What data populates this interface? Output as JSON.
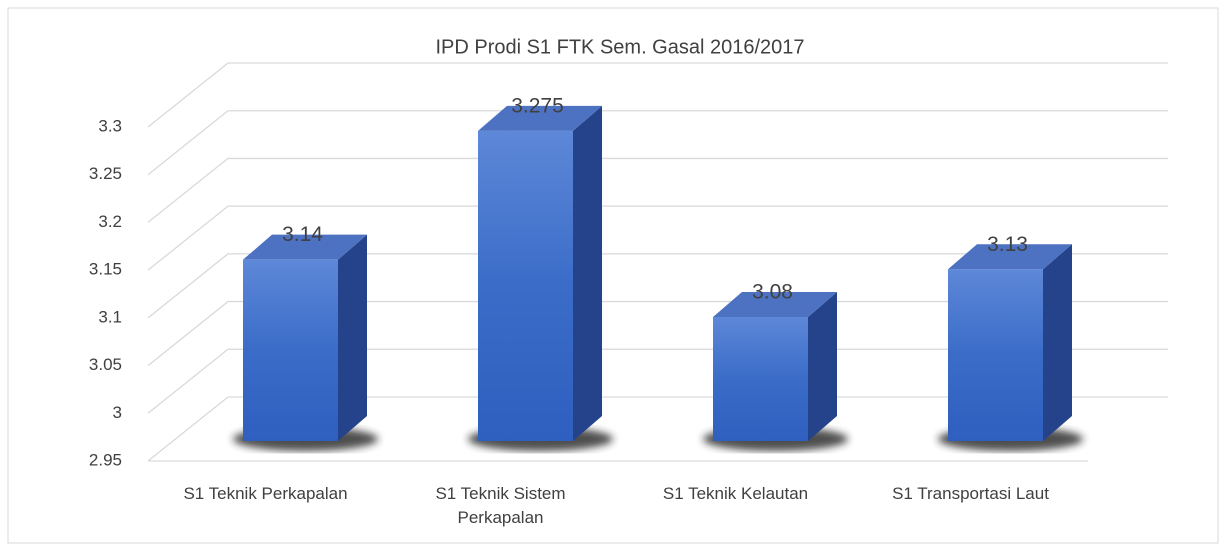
{
  "chart_data": {
    "type": "bar",
    "title": "IPD Prodi S1 FTK Sem. Gasal 2016/2017",
    "categories": [
      "S1 Teknik Perkapalan",
      "S1 Teknik Sistem Perkapalan",
      "S1 Teknik Kelautan",
      "S1 Transportasi Laut"
    ],
    "values": [
      3.14,
      3.275,
      3.08,
      3.13
    ],
    "color": "#3a6cc8",
    "ylim": [
      2.95,
      3.3
    ],
    "yticks": [
      2.95,
      3,
      3.05,
      3.1,
      3.15,
      3.2,
      3.25,
      3.3
    ],
    "grid": true
  }
}
